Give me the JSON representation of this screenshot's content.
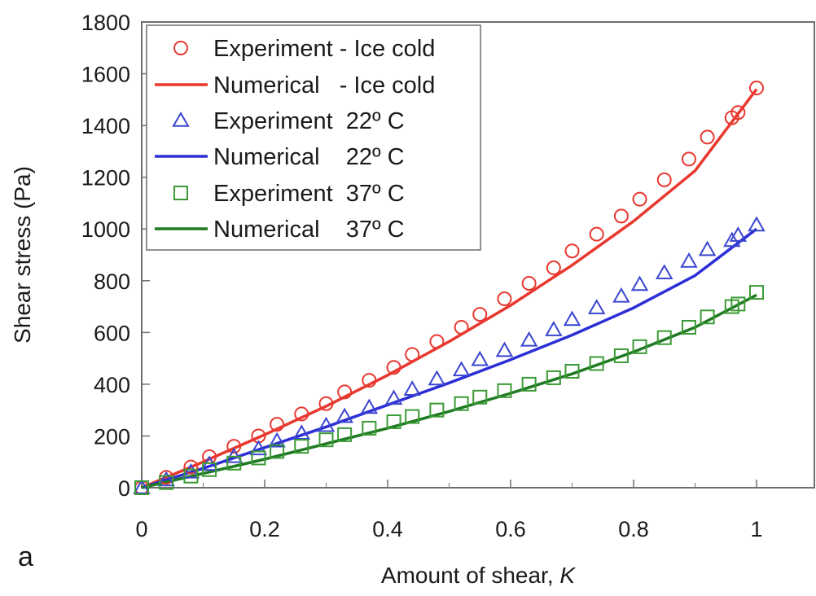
{
  "chart_data": {
    "type": "scatter",
    "panel_label": "a",
    "xlabel": "Amount of shear, ",
    "xlabel_italic": "K",
    "ylabel": "Shear stress (Pa)",
    "xlim": [
      0,
      1.1
    ],
    "ylim": [
      0,
      1800
    ],
    "x_ticks": [
      0,
      0.2,
      0.4,
      0.6,
      0.8,
      1
    ],
    "x_tick_labels": [
      "0",
      "0.2",
      "0.4",
      "0.6",
      "0.8",
      "1"
    ],
    "y_ticks": [
      0,
      200,
      400,
      600,
      800,
      1000,
      1200,
      1400,
      1600,
      1800
    ],
    "y_tick_labels": [
      "0",
      "200",
      "400",
      "600",
      "800",
      "1000",
      "1200",
      "1400",
      "1600",
      "1800"
    ],
    "grid": false,
    "legend_position": "top-left",
    "series": [
      {
        "name": "Experiment - Ice cold",
        "kind": "markers",
        "marker": "circle",
        "color": "#e8382f",
        "x": [
          0,
          0.04,
          0.08,
          0.11,
          0.15,
          0.19,
          0.22,
          0.26,
          0.3,
          0.33,
          0.37,
          0.41,
          0.44,
          0.48,
          0.52,
          0.55,
          0.59,
          0.63,
          0.67,
          0.7,
          0.74,
          0.78,
          0.81,
          0.85,
          0.89,
          0.92,
          0.96,
          0.97,
          1
        ],
        "y": [
          0,
          40,
          80,
          120,
          160,
          200,
          245,
          285,
          325,
          370,
          415,
          465,
          515,
          565,
          620,
          670,
          730,
          790,
          850,
          915,
          980,
          1050,
          1115,
          1190,
          1270,
          1355,
          1430,
          1450,
          1545
        ]
      },
      {
        "name": "Numerical   - Ice cold",
        "kind": "line",
        "color": "#e8382f",
        "x": [
          0,
          0.1,
          0.2,
          0.3,
          0.4,
          0.5,
          0.6,
          0.7,
          0.8,
          0.9,
          1.0
        ],
        "y": [
          0,
          100,
          205,
          315,
          435,
          565,
          705,
          860,
          1030,
          1225,
          1540
        ]
      },
      {
        "name": "Experiment  22º C",
        "kind": "markers",
        "marker": "triangle",
        "color": "#3a45cf",
        "x": [
          0,
          0.04,
          0.08,
          0.11,
          0.15,
          0.19,
          0.22,
          0.26,
          0.3,
          0.33,
          0.37,
          0.41,
          0.44,
          0.48,
          0.52,
          0.55,
          0.59,
          0.63,
          0.67,
          0.7,
          0.74,
          0.78,
          0.81,
          0.85,
          0.89,
          0.92,
          0.96,
          0.97,
          1
        ],
        "y": [
          0,
          30,
          60,
          90,
          120,
          150,
          180,
          210,
          240,
          275,
          310,
          345,
          380,
          420,
          455,
          495,
          530,
          570,
          610,
          650,
          695,
          740,
          785,
          830,
          875,
          920,
          955,
          975,
          1015
        ]
      },
      {
        "name": "Numerical    22º C",
        "kind": "line",
        "color": "#2d2fd6",
        "x": [
          0,
          0.1,
          0.2,
          0.3,
          0.4,
          0.5,
          0.6,
          0.7,
          0.8,
          0.9,
          1.0
        ],
        "y": [
          0,
          75,
          155,
          235,
          320,
          405,
          495,
          590,
          695,
          820,
          1000
        ]
      },
      {
        "name": "Experiment  37º C",
        "kind": "markers",
        "marker": "square",
        "color": "#3c9a35",
        "x": [
          0,
          0.04,
          0.08,
          0.11,
          0.15,
          0.19,
          0.22,
          0.26,
          0.3,
          0.33,
          0.37,
          0.41,
          0.44,
          0.48,
          0.52,
          0.55,
          0.59,
          0.63,
          0.67,
          0.7,
          0.74,
          0.78,
          0.81,
          0.85,
          0.89,
          0.92,
          0.96,
          0.97,
          1
        ],
        "y": [
          0,
          20,
          45,
          70,
          95,
          115,
          140,
          160,
          185,
          205,
          230,
          255,
          275,
          300,
          325,
          350,
          375,
          400,
          425,
          450,
          480,
          510,
          545,
          580,
          620,
          660,
          700,
          710,
          755
        ]
      },
      {
        "name": "Numerical    37º C",
        "kind": "line",
        "color": "#1f7a22",
        "x": [
          0,
          0.1,
          0.2,
          0.3,
          0.4,
          0.5,
          0.6,
          0.7,
          0.8,
          0.9,
          1.0
        ],
        "y": [
          0,
          55,
          110,
          170,
          230,
          295,
          365,
          440,
          525,
          620,
          745
        ]
      }
    ]
  }
}
